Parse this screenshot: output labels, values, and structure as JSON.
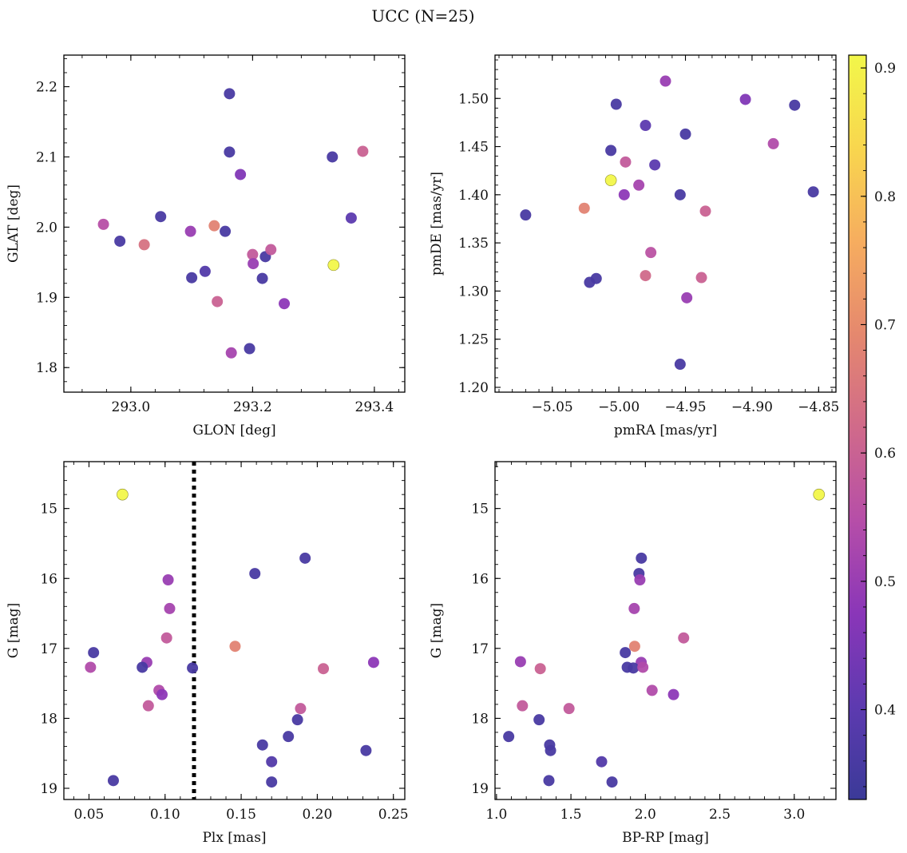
{
  "figure": {
    "title": "UCC (N=25)"
  },
  "colormap": {
    "name": "plasma",
    "min": 0.33,
    "max": 0.91,
    "ticks": [
      "0.4",
      "0.5",
      "0.6",
      "0.7",
      "0.8",
      "0.9"
    ],
    "stops": [
      "#3b3a98",
      "#5d3ab0",
      "#8a36b8",
      "#b64ea8",
      "#d06a8a",
      "#e5886e",
      "#f6ad5f",
      "#f8d64e",
      "#f2f74a"
    ]
  },
  "chart_data": [
    {
      "type": "scatter",
      "xlabel": "GLON [deg]",
      "ylabel": "GLAT [deg]",
      "xlim": [
        292.89,
        293.45
      ],
      "ylim": [
        1.765,
        2.245
      ],
      "xticks": [
        "293.0",
        "293.2",
        "293.4"
      ],
      "yticks": [
        "1.8",
        "1.9",
        "2.0",
        "2.1",
        "2.2"
      ],
      "points": [
        {
          "x": 292.955,
          "y": 2.004,
          "c": 0.55
        },
        {
          "x": 292.982,
          "y": 1.98,
          "c": 0.36
        },
        {
          "x": 293.022,
          "y": 1.975,
          "c": 0.64
        },
        {
          "x": 293.049,
          "y": 2.015,
          "c": 0.36
        },
        {
          "x": 293.098,
          "y": 1.994,
          "c": 0.5
        },
        {
          "x": 293.1,
          "y": 1.928,
          "c": 0.36
        },
        {
          "x": 293.122,
          "y": 1.937,
          "c": 0.38
        },
        {
          "x": 293.137,
          "y": 2.002,
          "c": 0.68
        },
        {
          "x": 293.142,
          "y": 1.894,
          "c": 0.6
        },
        {
          "x": 293.155,
          "y": 1.994,
          "c": 0.36
        },
        {
          "x": 293.162,
          "y": 2.107,
          "c": 0.36
        },
        {
          "x": 293.162,
          "y": 2.19,
          "c": 0.36
        },
        {
          "x": 293.165,
          "y": 1.821,
          "c": 0.52
        },
        {
          "x": 293.18,
          "y": 2.075,
          "c": 0.46
        },
        {
          "x": 293.195,
          "y": 1.827,
          "c": 0.36
        },
        {
          "x": 293.2,
          "y": 1.961,
          "c": 0.58
        },
        {
          "x": 293.201,
          "y": 1.948,
          "c": 0.5
        },
        {
          "x": 293.216,
          "y": 1.927,
          "c": 0.36
        },
        {
          "x": 293.221,
          "y": 1.958,
          "c": 0.36
        },
        {
          "x": 293.23,
          "y": 1.968,
          "c": 0.58
        },
        {
          "x": 293.252,
          "y": 1.891,
          "c": 0.48
        },
        {
          "x": 293.331,
          "y": 2.1,
          "c": 0.36
        },
        {
          "x": 293.333,
          "y": 1.946,
          "c": 0.91
        },
        {
          "x": 293.362,
          "y": 2.013,
          "c": 0.4
        },
        {
          "x": 293.381,
          "y": 2.108,
          "c": 0.6
        }
      ]
    },
    {
      "type": "scatter",
      "xlabel": "pmRA [mas/yr]",
      "ylabel": "pmDE [mas/yr]",
      "xlim": [
        -5.093,
        -4.837
      ],
      "ylim": [
        1.195,
        1.545
      ],
      "xticks": [
        "−5.05",
        "−5.00",
        "−4.95",
        "−4.90",
        "−4.85"
      ],
      "yticks": [
        "1.20",
        "1.25",
        "1.30",
        "1.35",
        "1.40",
        "1.45",
        "1.50"
      ],
      "points": [
        {
          "x": -5.07,
          "y": 1.379,
          "c": 0.36
        },
        {
          "x": -5.026,
          "y": 1.386,
          "c": 0.68
        },
        {
          "x": -5.022,
          "y": 1.309,
          "c": 0.36
        },
        {
          "x": -5.017,
          "y": 1.313,
          "c": 0.36
        },
        {
          "x": -5.006,
          "y": 1.446,
          "c": 0.36
        },
        {
          "x": -5.006,
          "y": 1.415,
          "c": 0.91
        },
        {
          "x": -5.002,
          "y": 1.494,
          "c": 0.36
        },
        {
          "x": -4.995,
          "y": 1.434,
          "c": 0.58
        },
        {
          "x": -4.996,
          "y": 1.4,
          "c": 0.48
        },
        {
          "x": -4.985,
          "y": 1.41,
          "c": 0.52
        },
        {
          "x": -4.98,
          "y": 1.472,
          "c": 0.4
        },
        {
          "x": -4.98,
          "y": 1.316,
          "c": 0.62
        },
        {
          "x": -4.976,
          "y": 1.34,
          "c": 0.56
        },
        {
          "x": -4.973,
          "y": 1.431,
          "c": 0.4
        },
        {
          "x": -4.965,
          "y": 1.518,
          "c": 0.5
        },
        {
          "x": -4.954,
          "y": 1.4,
          "c": 0.36
        },
        {
          "x": -4.954,
          "y": 1.224,
          "c": 0.36
        },
        {
          "x": -4.95,
          "y": 1.463,
          "c": 0.36
        },
        {
          "x": -4.949,
          "y": 1.293,
          "c": 0.5
        },
        {
          "x": -4.938,
          "y": 1.314,
          "c": 0.6
        },
        {
          "x": -4.935,
          "y": 1.383,
          "c": 0.6
        },
        {
          "x": -4.905,
          "y": 1.499,
          "c": 0.46
        },
        {
          "x": -4.884,
          "y": 1.453,
          "c": 0.54
        },
        {
          "x": -4.868,
          "y": 1.493,
          "c": 0.36
        },
        {
          "x": -4.854,
          "y": 1.403,
          "c": 0.36
        }
      ]
    },
    {
      "type": "scatter",
      "xlabel": "Plx [mas]",
      "ylabel": "G [mag]",
      "xlim": [
        0.0335,
        0.2575
      ],
      "ylim": [
        19.16,
        14.33
      ],
      "y_inverted": true,
      "xticks": [
        "0.05",
        "0.10",
        "0.15",
        "0.20",
        "0.25"
      ],
      "yticks": [
        "15",
        "16",
        "17",
        "18",
        "19"
      ],
      "vline": {
        "x": 0.119,
        "style": "dotted"
      },
      "points": [
        {
          "x": 0.072,
          "y": 14.8,
          "c": 0.91
        },
        {
          "x": 0.192,
          "y": 15.71,
          "c": 0.36
        },
        {
          "x": 0.159,
          "y": 15.93,
          "c": 0.36
        },
        {
          "x": 0.102,
          "y": 16.02,
          "c": 0.5
        },
        {
          "x": 0.103,
          "y": 16.43,
          "c": 0.52
        },
        {
          "x": 0.101,
          "y": 16.85,
          "c": 0.58
        },
        {
          "x": 0.146,
          "y": 16.97,
          "c": 0.68
        },
        {
          "x": 0.053,
          "y": 17.06,
          "c": 0.36
        },
        {
          "x": 0.088,
          "y": 17.2,
          "c": 0.5
        },
        {
          "x": 0.051,
          "y": 17.27,
          "c": 0.54
        },
        {
          "x": 0.085,
          "y": 17.27,
          "c": 0.36
        },
        {
          "x": 0.118,
          "y": 17.28,
          "c": 0.36
        },
        {
          "x": 0.204,
          "y": 17.29,
          "c": 0.6
        },
        {
          "x": 0.237,
          "y": 17.2,
          "c": 0.48
        },
        {
          "x": 0.096,
          "y": 17.6,
          "c": 0.54
        },
        {
          "x": 0.098,
          "y": 17.66,
          "c": 0.48
        },
        {
          "x": 0.089,
          "y": 17.82,
          "c": 0.58
        },
        {
          "x": 0.189,
          "y": 17.86,
          "c": 0.58
        },
        {
          "x": 0.187,
          "y": 18.02,
          "c": 0.36
        },
        {
          "x": 0.181,
          "y": 18.26,
          "c": 0.36
        },
        {
          "x": 0.164,
          "y": 18.38,
          "c": 0.36
        },
        {
          "x": 0.232,
          "y": 18.46,
          "c": 0.36
        },
        {
          "x": 0.17,
          "y": 18.62,
          "c": 0.38
        },
        {
          "x": 0.066,
          "y": 18.89,
          "c": 0.36
        },
        {
          "x": 0.17,
          "y": 18.91,
          "c": 0.36
        }
      ]
    },
    {
      "type": "scatter",
      "xlabel": "BP-RP [mag]",
      "ylabel": "G [mag]",
      "xlim": [
        0.99,
        3.28
      ],
      "ylim": [
        19.16,
        14.33
      ],
      "y_inverted": true,
      "xticks": [
        "1.0",
        "1.5",
        "2.0",
        "2.5",
        "3.0"
      ],
      "yticks": [
        "15",
        "16",
        "17",
        "18",
        "19"
      ],
      "points": [
        {
          "x": 3.166,
          "y": 14.8,
          "c": 0.91
        },
        {
          "x": 1.973,
          "y": 15.71,
          "c": 0.36
        },
        {
          "x": 1.957,
          "y": 15.93,
          "c": 0.36
        },
        {
          "x": 1.963,
          "y": 16.02,
          "c": 0.5
        },
        {
          "x": 1.925,
          "y": 16.43,
          "c": 0.52
        },
        {
          "x": 2.257,
          "y": 16.85,
          "c": 0.58
        },
        {
          "x": 1.928,
          "y": 16.97,
          "c": 0.68
        },
        {
          "x": 1.865,
          "y": 17.06,
          "c": 0.36
        },
        {
          "x": 1.161,
          "y": 17.19,
          "c": 0.5
        },
        {
          "x": 1.972,
          "y": 17.2,
          "c": 0.5
        },
        {
          "x": 1.878,
          "y": 17.27,
          "c": 0.36
        },
        {
          "x": 1.919,
          "y": 17.28,
          "c": 0.36
        },
        {
          "x": 1.983,
          "y": 17.27,
          "c": 0.54
        },
        {
          "x": 1.294,
          "y": 17.29,
          "c": 0.6
        },
        {
          "x": 2.045,
          "y": 17.6,
          "c": 0.54
        },
        {
          "x": 2.189,
          "y": 17.66,
          "c": 0.48
        },
        {
          "x": 1.174,
          "y": 17.82,
          "c": 0.58
        },
        {
          "x": 1.487,
          "y": 17.86,
          "c": 0.58
        },
        {
          "x": 1.286,
          "y": 18.02,
          "c": 0.36
        },
        {
          "x": 1.082,
          "y": 18.26,
          "c": 0.36
        },
        {
          "x": 1.357,
          "y": 18.38,
          "c": 0.36
        },
        {
          "x": 1.363,
          "y": 18.46,
          "c": 0.36
        },
        {
          "x": 1.706,
          "y": 18.62,
          "c": 0.38
        },
        {
          "x": 1.352,
          "y": 18.89,
          "c": 0.36
        },
        {
          "x": 1.776,
          "y": 18.91,
          "c": 0.36
        }
      ]
    }
  ]
}
